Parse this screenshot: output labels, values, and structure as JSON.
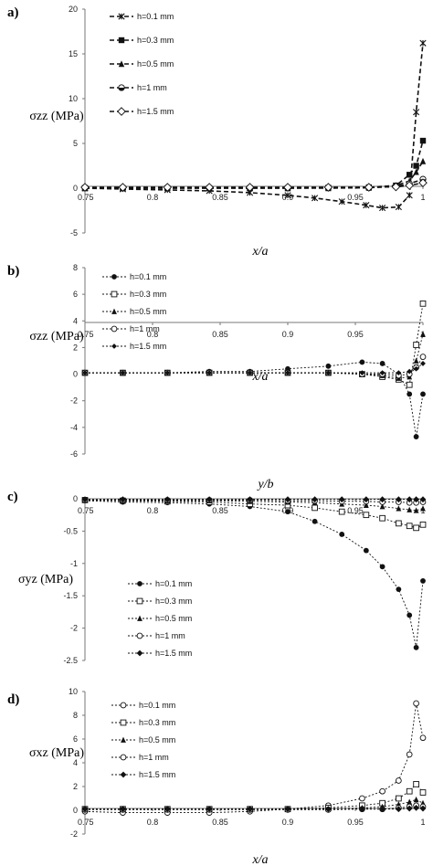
{
  "chart_data": [
    {
      "panel": "a)",
      "type": "line",
      "ylabel": "σzz (MPa)",
      "xlabel": "x/a",
      "xlim": [
        0.75,
        1.0
      ],
      "ylim": [
        -5,
        20
      ],
      "xticks": [
        "0.75",
        "0.8",
        "0.85",
        "0.9",
        "0.95",
        "1"
      ],
      "yticks": [
        "-5",
        "0",
        "5",
        "10",
        "15",
        "20"
      ],
      "legend": "top-right",
      "series": [
        {
          "name": "h=0.1 mm",
          "marker": "star",
          "x": [
            0.75,
            0.778,
            0.811,
            0.842,
            0.872,
            0.9,
            0.92,
            0.94,
            0.958,
            0.97,
            0.982,
            0.99,
            0.995,
            1.0
          ],
          "y": [
            0,
            -0.1,
            -0.2,
            -0.3,
            -0.5,
            -0.8,
            -1.1,
            -1.5,
            -1.9,
            -2.2,
            -2.1,
            -0.8,
            8.5,
            16.2
          ]
        },
        {
          "name": "h=0.3 mm",
          "marker": "square",
          "x": [
            0.75,
            0.778,
            0.811,
            0.842,
            0.872,
            0.9,
            0.93,
            0.96,
            0.98,
            0.99,
            0.995,
            1.0
          ],
          "y": [
            0,
            0,
            0,
            0,
            0,
            0,
            0.05,
            0.1,
            0.3,
            1.5,
            2.5,
            5.3
          ]
        },
        {
          "name": "h=0.5 mm",
          "marker": "triangle",
          "x": [
            0.75,
            0.778,
            0.811,
            0.842,
            0.872,
            0.9,
            0.93,
            0.96,
            0.98,
            0.99,
            0.995,
            1.0
          ],
          "y": [
            0,
            0,
            0,
            0,
            0,
            0,
            0,
            0.05,
            0.3,
            0.8,
            1.8,
            3.0
          ]
        },
        {
          "name": "h=1 mm",
          "marker": "half-circle",
          "x": [
            0.75,
            0.778,
            0.811,
            0.842,
            0.872,
            0.9,
            0.93,
            0.96,
            0.98,
            0.99,
            1.0
          ],
          "y": [
            0.05,
            0.05,
            0.05,
            0.05,
            0.05,
            0.05,
            0.05,
            0.05,
            0.2,
            0.5,
            1.0
          ]
        },
        {
          "name": "h=1.5 mm",
          "marker": "diamond",
          "x": [
            0.75,
            0.778,
            0.811,
            0.842,
            0.872,
            0.9,
            0.93,
            0.96,
            0.98,
            0.99,
            1.0
          ],
          "y": [
            0.1,
            0.1,
            0.1,
            0.1,
            0.1,
            0.1,
            0.1,
            0.1,
            0.15,
            0.3,
            0.6
          ]
        }
      ]
    },
    {
      "panel": "b)",
      "type": "line",
      "ylabel": "σzz (MPa)",
      "xlabel": "x/a",
      "xlim": [
        0.75,
        1.0
      ],
      "ylim": [
        -6,
        8
      ],
      "xticks": [
        "0.75",
        "0.8",
        "0.85",
        "0.9",
        "0.95",
        "1"
      ],
      "yticks": [
        "-6",
        "-4",
        "-2",
        "0",
        "2",
        "4",
        "6",
        "8"
      ],
      "legend": "top-left",
      "series": [
        {
          "name": "h=0.1 mm",
          "marker": "filled-circle",
          "x": [
            0.75,
            0.778,
            0.811,
            0.842,
            0.872,
            0.9,
            0.93,
            0.955,
            0.97,
            0.982,
            0.99,
            0.995,
            1.0
          ],
          "y": [
            0.1,
            0.1,
            0.1,
            0.2,
            0.2,
            0.4,
            0.6,
            0.9,
            0.8,
            0.0,
            -1.5,
            -4.7,
            -1.5
          ]
        },
        {
          "name": "h=0.3 mm",
          "marker": "open-square",
          "x": [
            0.75,
            0.778,
            0.811,
            0.842,
            0.872,
            0.9,
            0.93,
            0.955,
            0.97,
            0.982,
            0.99,
            0.995,
            1.0
          ],
          "y": [
            0.1,
            0.1,
            0.1,
            0.1,
            0.1,
            0.1,
            0.1,
            0.0,
            -0.2,
            -0.4,
            -0.8,
            2.2,
            5.3
          ]
        },
        {
          "name": "h=0.5 mm",
          "marker": "filled-triangle",
          "x": [
            0.75,
            0.778,
            0.811,
            0.842,
            0.872,
            0.9,
            0.93,
            0.955,
            0.97,
            0.982,
            0.99,
            0.995,
            1.0
          ],
          "y": [
            0.1,
            0.1,
            0.1,
            0.1,
            0.1,
            0.1,
            0.1,
            0.0,
            -0.1,
            -0.3,
            -0.2,
            1.0,
            3.0
          ]
        },
        {
          "name": "h=1 mm",
          "marker": "open-circle",
          "x": [
            0.75,
            0.778,
            0.811,
            0.842,
            0.872,
            0.9,
            0.93,
            0.955,
            0.97,
            0.982,
            0.99,
            0.995,
            1.0
          ],
          "y": [
            0.1,
            0.1,
            0.1,
            0.1,
            0.1,
            0.1,
            0.1,
            0.0,
            0.0,
            -0.1,
            0.0,
            0.5,
            1.3
          ]
        },
        {
          "name": "h=1.5 mm",
          "marker": "small-diamond",
          "x": [
            0.75,
            0.778,
            0.811,
            0.842,
            0.872,
            0.9,
            0.93,
            0.955,
            0.97,
            0.982,
            0.99,
            0.995,
            1.0
          ],
          "y": [
            0.1,
            0.1,
            0.1,
            0.1,
            0.1,
            0.1,
            0.1,
            0.1,
            0.1,
            0.1,
            0.2,
            0.4,
            0.8
          ]
        }
      ]
    },
    {
      "panel": "c)",
      "type": "line",
      "ylabel": "σyz (MPa)",
      "xlabel": "y/b",
      "xlim": [
        0.75,
        1.0
      ],
      "ylim": [
        -2.5,
        0
      ],
      "xticks": [
        "0.75",
        "0.8",
        "0.85",
        "0.9",
        "0.95",
        "1"
      ],
      "yticks": [
        "-2.5",
        "-2",
        "-1.5",
        "-1",
        "-0.5",
        "0"
      ],
      "legend": "bottom-left",
      "series": [
        {
          "name": "h=0.1 mm",
          "marker": "filled-circle",
          "x": [
            0.75,
            0.778,
            0.811,
            0.842,
            0.872,
            0.9,
            0.92,
            0.94,
            0.958,
            0.97,
            0.982,
            0.99,
            0.995,
            1.0
          ],
          "y": [
            -0.03,
            -0.05,
            -0.06,
            -0.08,
            -0.12,
            -0.2,
            -0.35,
            -0.55,
            -0.8,
            -1.05,
            -1.4,
            -1.8,
            -2.3,
            -1.27
          ]
        },
        {
          "name": "h=0.3 mm",
          "marker": "open-square",
          "x": [
            0.75,
            0.778,
            0.811,
            0.842,
            0.872,
            0.9,
            0.92,
            0.94,
            0.958,
            0.97,
            0.982,
            0.99,
            0.995,
            1.0
          ],
          "y": [
            -0.02,
            -0.03,
            -0.04,
            -0.05,
            -0.08,
            -0.1,
            -0.14,
            -0.2,
            -0.25,
            -0.3,
            -0.38,
            -0.42,
            -0.45,
            -0.4
          ]
        },
        {
          "name": "h=0.5 mm",
          "marker": "filled-triangle",
          "x": [
            0.75,
            0.778,
            0.811,
            0.842,
            0.872,
            0.9,
            0.92,
            0.94,
            0.958,
            0.97,
            0.982,
            0.99,
            0.995,
            1.0
          ],
          "y": [
            -0.02,
            -0.02,
            -0.03,
            -0.03,
            -0.04,
            -0.05,
            -0.06,
            -0.08,
            -0.1,
            -0.12,
            -0.15,
            -0.17,
            -0.18,
            -0.15
          ]
        },
        {
          "name": "h=1 mm",
          "marker": "open-circle",
          "x": [
            0.75,
            0.778,
            0.811,
            0.842,
            0.872,
            0.9,
            0.92,
            0.94,
            0.958,
            0.97,
            0.982,
            0.99,
            0.995,
            1.0
          ],
          "y": [
            -0.02,
            -0.02,
            -0.02,
            -0.02,
            -0.02,
            -0.03,
            -0.03,
            -0.04,
            -0.04,
            -0.05,
            -0.05,
            -0.06,
            -0.06,
            -0.05
          ]
        },
        {
          "name": "h=1.5 mm",
          "marker": "filled-diamond",
          "x": [
            0.75,
            0.778,
            0.811,
            0.842,
            0.872,
            0.9,
            0.92,
            0.94,
            0.958,
            0.97,
            0.982,
            0.99,
            0.995,
            1.0
          ],
          "y": [
            -0.01,
            -0.01,
            -0.01,
            -0.01,
            -0.01,
            -0.01,
            -0.01,
            -0.01,
            -0.01,
            -0.01,
            -0.01,
            -0.01,
            -0.01,
            -0.01
          ]
        }
      ]
    },
    {
      "panel": "d)",
      "type": "line",
      "ylabel": "σxz (MPa)",
      "xlabel": "x/a",
      "xlim": [
        0.75,
        1.0
      ],
      "ylim": [
        -2,
        10
      ],
      "xticks": [
        "0.75",
        "0.8",
        "0.85",
        "0.9",
        "0.95",
        "1"
      ],
      "yticks": [
        "-2",
        "0",
        "2",
        "4",
        "6",
        "8",
        "10"
      ],
      "legend": "top-left",
      "series": [
        {
          "name": "h=0.1 mm",
          "marker": "open-circle",
          "x": [
            0.75,
            0.778,
            0.811,
            0.842,
            0.872,
            0.9,
            0.93,
            0.955,
            0.97,
            0.982,
            0.99,
            0.995,
            1.0
          ],
          "y": [
            -0.1,
            -0.2,
            -0.2,
            -0.2,
            -0.1,
            0.1,
            0.4,
            1.0,
            1.6,
            2.5,
            4.7,
            9.0,
            6.1
          ]
        },
        {
          "name": "h=0.3 mm",
          "marker": "open-square",
          "x": [
            0.75,
            0.778,
            0.811,
            0.842,
            0.872,
            0.9,
            0.93,
            0.955,
            0.97,
            0.982,
            0.99,
            0.995,
            1.0
          ],
          "y": [
            0.1,
            0.1,
            0.1,
            0.1,
            0.1,
            0.1,
            0.2,
            0.4,
            0.6,
            1.0,
            1.6,
            2.2,
            1.5
          ]
        },
        {
          "name": "h=0.5 mm",
          "marker": "filled-triangle",
          "x": [
            0.75,
            0.778,
            0.811,
            0.842,
            0.872,
            0.9,
            0.93,
            0.955,
            0.97,
            0.982,
            0.99,
            0.995,
            1.0
          ],
          "y": [
            0.1,
            0.1,
            0.1,
            0.1,
            0.1,
            0.1,
            0.1,
            0.2,
            0.3,
            0.5,
            0.7,
            0.9,
            0.6
          ]
        },
        {
          "name": "h=1 mm",
          "marker": "open-circle",
          "x": [
            0.75,
            0.778,
            0.811,
            0.842,
            0.872,
            0.9,
            0.93,
            0.955,
            0.97,
            0.982,
            0.99,
            0.995,
            1.0
          ],
          "y": [
            0.05,
            0.05,
            0.05,
            0.05,
            0.05,
            0.05,
            0.05,
            0.1,
            0.1,
            0.2,
            0.3,
            0.4,
            0.3
          ]
        },
        {
          "name": "h=1.5 mm",
          "marker": "filled-diamond",
          "x": [
            0.75,
            0.778,
            0.811,
            0.842,
            0.872,
            0.9,
            0.93,
            0.955,
            0.97,
            0.982,
            0.99,
            0.995,
            1.0
          ],
          "y": [
            0.1,
            0.1,
            0.1,
            0.1,
            0.1,
            0.1,
            0.1,
            0.1,
            0.1,
            0.1,
            0.15,
            0.2,
            0.15
          ]
        }
      ]
    }
  ]
}
